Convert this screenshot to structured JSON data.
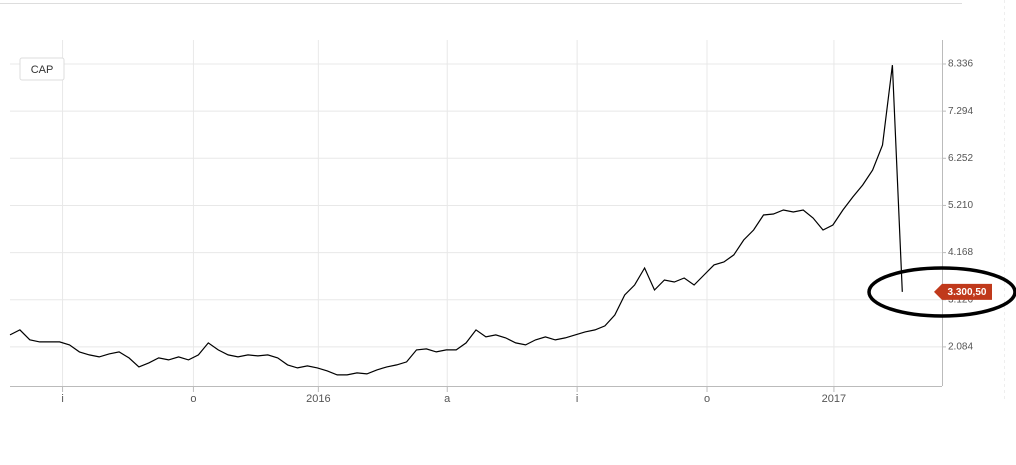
{
  "chart_data": {
    "type": "line",
    "xlim": [
      0,
      94
    ],
    "xticks": [
      {
        "value": 5.3,
        "label": "i"
      },
      {
        "value": 18.5,
        "label": "o"
      },
      {
        "value": 31.1,
        "label": "2016"
      },
      {
        "value": 44.1,
        "label": "a"
      },
      {
        "value": 57.2,
        "label": "i"
      },
      {
        "value": 70.3,
        "label": "o"
      },
      {
        "value": 83.1,
        "label": "2017"
      }
    ],
    "ylim": [
      1220,
      8866
    ],
    "yticks": [
      {
        "value": 2084,
        "label": "2.084"
      },
      {
        "value": 3126,
        "label": "3.126"
      },
      {
        "value": 4168,
        "label": "4.168"
      },
      {
        "value": 5210,
        "label": "5.210"
      },
      {
        "value": 6252,
        "label": "6.252"
      },
      {
        "value": 7294,
        "label": "7.294"
      },
      {
        "value": 8336,
        "label": "8.336"
      }
    ],
    "grid": true,
    "series": [
      {
        "name": "CAP",
        "color": "#000000",
        "values": [
          2349,
          2460,
          2240,
          2194,
          2194,
          2194,
          2128,
          1974,
          1907,
          1863,
          1930,
          1974,
          1840,
          1642,
          1730,
          1840,
          1797,
          1863,
          1797,
          1907,
          2172,
          2018,
          1907,
          1863,
          1907,
          1885,
          1907,
          1840,
          1686,
          1620,
          1664,
          1620,
          1554,
          1466,
          1466,
          1510,
          1488,
          1576,
          1642,
          1686,
          1753,
          2018,
          2040,
          1974,
          2018,
          2018,
          2172,
          2460,
          2305,
          2349,
          2283,
          2172,
          2128,
          2238,
          2305,
          2238,
          2283,
          2349,
          2415,
          2460,
          2548,
          2790,
          3232,
          3453,
          3828,
          3342,
          3563,
          3519,
          3607,
          3453,
          3674,
          3895,
          3961,
          4116,
          4447,
          4667,
          4998,
          5021,
          5109,
          5065,
          5109,
          4932,
          4667,
          4778,
          5109,
          5396,
          5661,
          5992,
          6544,
          8311,
          3300.5
        ]
      }
    ],
    "last_price": {
      "value": 3300.5,
      "label": "3.300,50",
      "color": "#c0391b"
    }
  }
}
